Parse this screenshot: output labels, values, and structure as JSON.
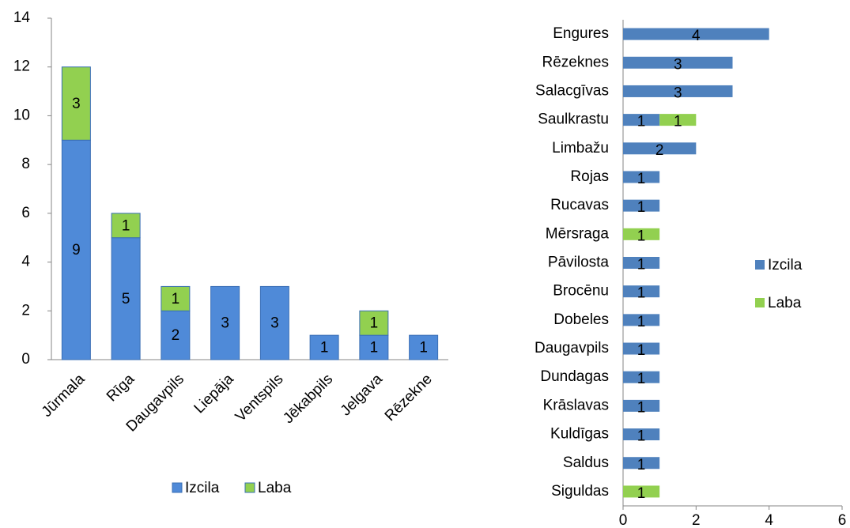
{
  "chart_data": [
    {
      "type": "bar",
      "orientation": "vertical",
      "stacked": true,
      "legend": "bottom",
      "categories": [
        "Jūrmala",
        "Rīga",
        "Daugavpils",
        "Liepāja",
        "Ventspils",
        "Jēkabpils",
        "Jelgava",
        "Rēzekne"
      ],
      "series": [
        {
          "name": "Izcila",
          "color": "#4f8ad8",
          "values": [
            9,
            5,
            2,
            3,
            3,
            1,
            1,
            1
          ]
        },
        {
          "name": "Laba",
          "color": "#92d050",
          "values": [
            3,
            1,
            1,
            null,
            null,
            null,
            1,
            null
          ]
        }
      ],
      "ylim": [
        0,
        14
      ],
      "yticks": [
        0,
        2,
        4,
        6,
        8,
        10,
        12,
        14
      ]
    },
    {
      "type": "bar",
      "orientation": "horizontal",
      "stacked": true,
      "legend": "right",
      "categories": [
        "Engures",
        "Rēzeknes",
        "Salacgīvas",
        "Saulkrastu",
        "Limbažu",
        "Rojas",
        "Rucavas",
        "Mērsraga",
        "Pāvilosta",
        "Brocēnu",
        "Dobeles",
        "Daugavpils",
        "Dundagas",
        "Krāslavas",
        "Kuldīgas",
        "Saldus",
        "Siguldas"
      ],
      "series": [
        {
          "name": "Izcila",
          "color": "#4f81bd",
          "values": [
            4,
            3,
            3,
            1,
            2,
            1,
            1,
            null,
            1,
            1,
            1,
            1,
            1,
            1,
            1,
            1,
            null
          ]
        },
        {
          "name": "Laba",
          "color": "#92d050",
          "values": [
            null,
            null,
            null,
            1,
            null,
            null,
            null,
            1,
            null,
            null,
            null,
            null,
            null,
            null,
            null,
            null,
            1
          ]
        }
      ],
      "xlim": [
        0,
        6
      ],
      "xticks": [
        0,
        2,
        4,
        6
      ]
    }
  ]
}
